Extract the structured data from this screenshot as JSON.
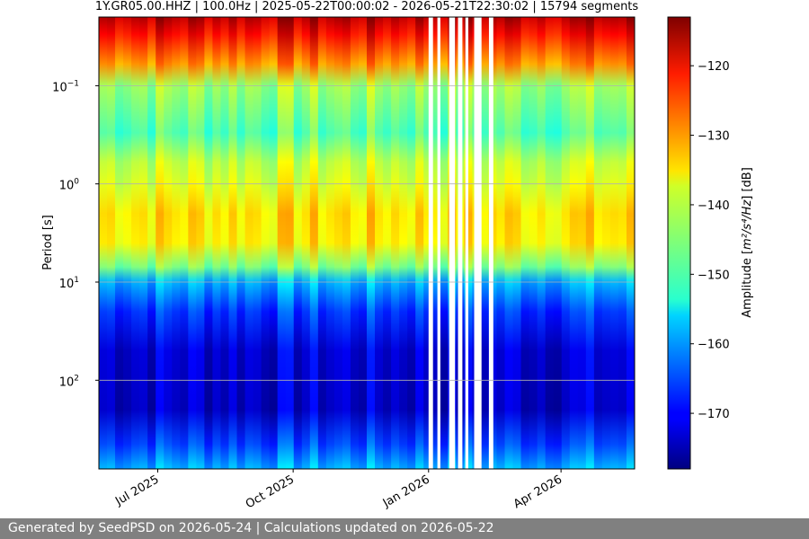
{
  "chart_data": {
    "type": "heatmap",
    "title": "1Y.GR05.00.HHZ | 100.0Hz | 2025-05-22T00:00:02 - 2026-05-21T22:30:02 | 15794 segments",
    "xlabel": "",
    "ylabel": "Period [s]",
    "x_range": [
      "2025-05-22",
      "2026-05-21"
    ],
    "x_ticks": [
      {
        "date": "2025-07-01",
        "label": "Jul 2025"
      },
      {
        "date": "2025-10-01",
        "label": "Oct 2025"
      },
      {
        "date": "2026-01-01",
        "label": "Jan 2026"
      },
      {
        "date": "2026-04-01",
        "label": "Apr 2026"
      }
    ],
    "y_scale": "log",
    "y_inverted": true,
    "y_range": [
      0.02,
      800
    ],
    "y_ticks": [
      {
        "value": 0.1,
        "base": "10",
        "exp": "−1"
      },
      {
        "value": 1,
        "base": "10",
        "exp": "0"
      },
      {
        "value": 10,
        "base": "10",
        "exp": "1"
      },
      {
        "value": 100,
        "base": "10",
        "exp": "2"
      }
    ],
    "grid": true,
    "colormap": "jet",
    "colorbar": {
      "label_prefix": "Amplitude [",
      "label_unit": "m²/s⁴/Hz",
      "label_suffix": "] [dB]",
      "range": [
        -178,
        -113
      ],
      "ticks": [
        "−120",
        "−130",
        "−140",
        "−150",
        "−160",
        "−170"
      ],
      "tick_values": [
        -120,
        -130,
        -140,
        -150,
        -160,
        -170
      ]
    },
    "amplitude_profile_by_period": [
      {
        "period": 0.02,
        "db": -116
      },
      {
        "period": 0.03,
        "db": -121
      },
      {
        "period": 0.06,
        "db": -130
      },
      {
        "period": 0.1,
        "db": -143
      },
      {
        "period": 0.3,
        "db": -148
      },
      {
        "period": 0.6,
        "db": -141
      },
      {
        "period": 1,
        "db": -139
      },
      {
        "period": 2,
        "db": -135
      },
      {
        "period": 4,
        "db": -136
      },
      {
        "period": 7,
        "db": -145
      },
      {
        "period": 10,
        "db": -158
      },
      {
        "period": 20,
        "db": -166
      },
      {
        "period": 50,
        "db": -172
      },
      {
        "period": 200,
        "db": -173
      },
      {
        "period": 450,
        "db": -165
      },
      {
        "period": 800,
        "db": -158
      }
    ],
    "data_gaps": [
      [
        "2026-01-01",
        "2026-01-04"
      ],
      [
        "2026-01-07",
        "2026-01-09"
      ],
      [
        "2026-01-15",
        "2026-01-19"
      ],
      [
        "2026-01-21",
        "2026-01-24"
      ],
      [
        "2026-01-26",
        "2026-01-28"
      ],
      [
        "2026-02-01",
        "2026-02-06"
      ],
      [
        "2026-02-11",
        "2026-02-14"
      ]
    ]
  },
  "footer": {
    "text": "Generated by SeedPSD on 2026-05-24 | Calculations updated on 2026-05-22"
  }
}
